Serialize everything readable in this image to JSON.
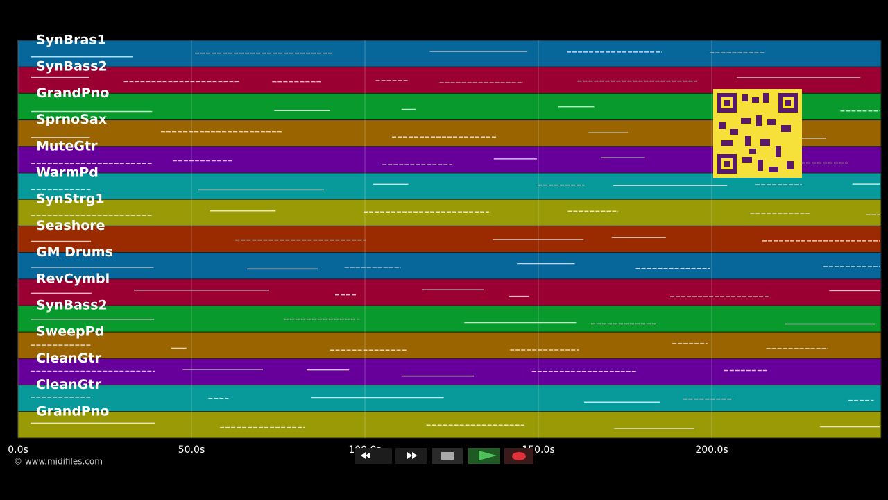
{
  "timeline": {
    "xlim": [
      0,
      248.8
    ],
    "ticks": [
      {
        "value": 0,
        "label": "0.0s"
      },
      {
        "value": 50,
        "label": "50.0s"
      },
      {
        "value": 100,
        "label": "100.0s"
      },
      {
        "value": 150,
        "label": "150.0s"
      },
      {
        "value": 200,
        "label": "200.0s"
      }
    ],
    "tracks": [
      {
        "name": "SynBras1",
        "color": "#07679a"
      },
      {
        "name": "SynBass2",
        "color": "#9a0032"
      },
      {
        "name": "GrandPno",
        "color": "#089a2c"
      },
      {
        "name": "SprnoSax",
        "color": "#9a6400"
      },
      {
        "name": "MuteGtr",
        "color": "#67009a"
      },
      {
        "name": "WarmPd",
        "color": "#089a9a"
      },
      {
        "name": "SynStrg1",
        "color": "#9a9a07"
      },
      {
        "name": "Seashore",
        "color": "#9a2a00"
      },
      {
        "name": "GM Drums",
        "color": "#07679a"
      },
      {
        "name": "RevCymbl",
        "color": "#9a0032"
      },
      {
        "name": "SynBass2",
        "color": "#089a2c"
      },
      {
        "name": "SweepPd",
        "color": "#9a6400"
      },
      {
        "name": "CleanGtr",
        "color": "#67009a"
      },
      {
        "name": "CleanGtr",
        "color": "#089a9a"
      },
      {
        "name": "GrandPno",
        "color": "#9a9a07"
      }
    ]
  },
  "footer": "© www.midifiles.com"
}
